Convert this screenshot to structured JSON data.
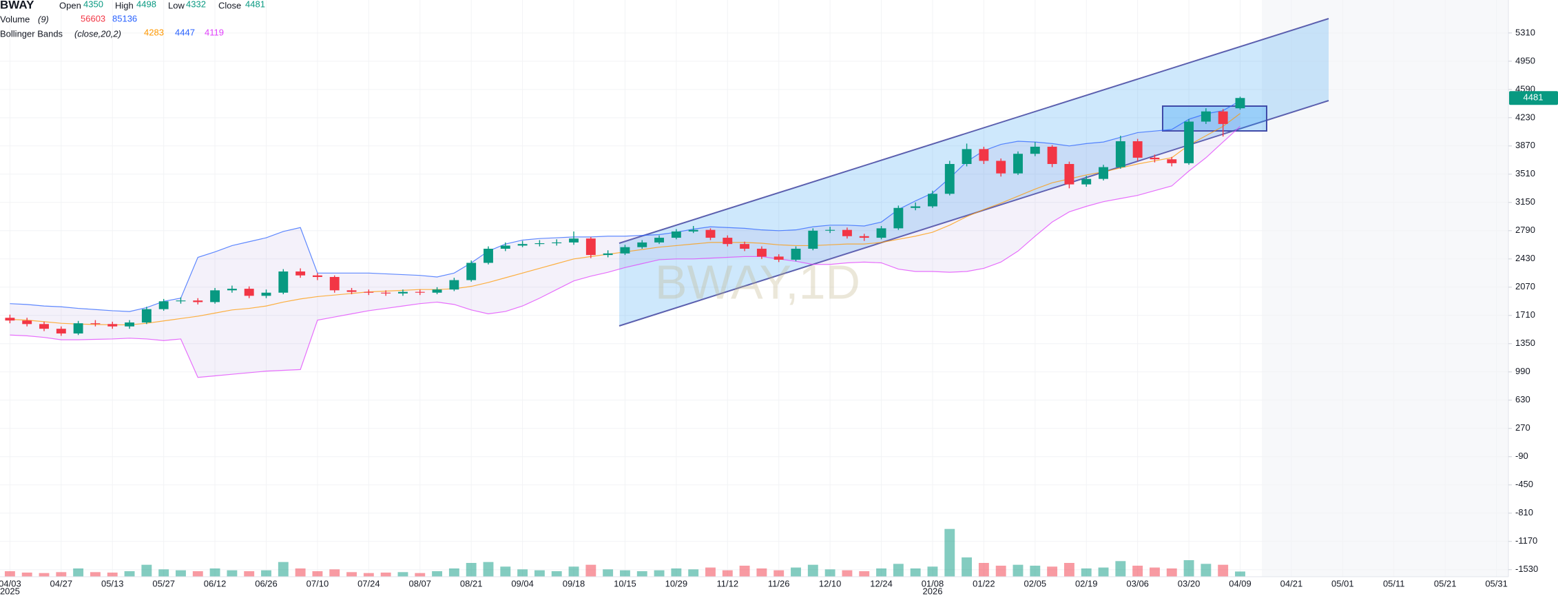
{
  "chart_data": {
    "type": "candlestick",
    "title": "BWAY",
    "watermark": "BWAY,1D",
    "open_label": "Open",
    "high_label": "High",
    "low_label": "Low",
    "close_label": "Close",
    "volume_label": "Volume",
    "volume_params": "(9)",
    "volume_ma": 85136,
    "bb_label": "Bollinger Bands",
    "bb_params": "(close,20,2)",
    "categories": [
      "04/03",
      null,
      null,
      "04/27",
      null,
      null,
      "05/13",
      null,
      null,
      "05/27",
      null,
      null,
      "06/12",
      null,
      null,
      "06/26",
      null,
      null,
      "07/10",
      null,
      null,
      "07/24",
      null,
      null,
      "08/07",
      null,
      null,
      "08/21",
      null,
      null,
      "09/04",
      null,
      null,
      "09/18",
      null,
      null,
      "10/15",
      null,
      null,
      "10/29",
      null,
      null,
      "11/12",
      null,
      null,
      "11/26",
      null,
      null,
      "12/10",
      null,
      null,
      "12/24",
      null,
      null,
      "01/08",
      null,
      null,
      "01/22",
      null,
      null,
      "02/05",
      null,
      null,
      "02/19",
      null,
      null,
      "03/06",
      null,
      null,
      "03/20",
      null,
      null,
      "04/09",
      null,
      null,
      "04/21",
      null,
      null,
      "05/01",
      null,
      null,
      "05/11",
      null,
      null,
      "05/21",
      null,
      null,
      "05/31"
    ],
    "year_labels": [
      "2025",
      "2026"
    ],
    "open": [
      1680,
      1645,
      1600,
      1540,
      1480,
      1610,
      1600,
      1570,
      1620,
      1790,
      1890,
      1900,
      1880,
      2030,
      2050,
      1960,
      2000,
      2270,
      2220,
      2200,
      2030,
      2010,
      2000,
      1990,
      2010,
      2000,
      2040,
      2160,
      2380,
      2560,
      2600,
      2620,
      2630,
      2640,
      2690,
      2480,
      2500,
      2580,
      2640,
      2700,
      2780,
      2800,
      2700,
      2620,
      2560,
      2460,
      2420,
      2560,
      2790,
      2800,
      2720,
      2700,
      2820,
      3080,
      3100,
      3260,
      3640,
      3830,
      3680,
      3520,
      3770,
      3860,
      3640,
      3380,
      3450,
      3600,
      3930,
      3720,
      3700,
      3650,
      4180,
      4310,
      4350,
      null,
      null,
      null,
      null,
      null,
      null,
      null,
      null,
      null,
      null,
      null,
      null,
      null,
      null,
      null
    ],
    "high": [
      1720,
      1680,
      1630,
      1570,
      1640,
      1650,
      1630,
      1650,
      1820,
      1920,
      1940,
      1930,
      2060,
      2090,
      2080,
      2040,
      2300,
      2310,
      2250,
      2220,
      2060,
      2040,
      2030,
      2040,
      2040,
      2070,
      2190,
      2410,
      2590,
      2640,
      2660,
      2670,
      2680,
      2780,
      2710,
      2540,
      2610,
      2670,
      2730,
      2810,
      2850,
      2820,
      2730,
      2650,
      2590,
      2490,
      2590,
      2820,
      2840,
      2830,
      2750,
      2850,
      3110,
      3150,
      3300,
      3680,
      3900,
      3860,
      3710,
      3800,
      3920,
      3880,
      3670,
      3490,
      3630,
      4000,
      3960,
      3760,
      3730,
      4210,
      4350,
      4340,
      4498,
      null,
      null,
      null,
      null,
      null,
      null,
      null,
      null,
      null,
      null,
      null,
      null,
      null,
      null,
      null
    ],
    "low": [
      1610,
      1570,
      1510,
      1450,
      1460,
      1570,
      1540,
      1540,
      1600,
      1770,
      1860,
      1850,
      1860,
      2000,
      1930,
      1930,
      1980,
      2190,
      2160,
      2000,
      1980,
      1970,
      1960,
      1960,
      1970,
      1980,
      2020,
      2140,
      2360,
      2530,
      2580,
      2590,
      2600,
      2610,
      2440,
      2450,
      2480,
      2560,
      2620,
      2680,
      2760,
      2670,
      2590,
      2530,
      2430,
      2390,
      2400,
      2540,
      2760,
      2690,
      2660,
      2680,
      2800,
      3050,
      3080,
      3240,
      3610,
      3640,
      3480,
      3500,
      3740,
      3600,
      3330,
      3350,
      3430,
      3580,
      3680,
      3660,
      3610,
      3630,
      4150,
      3990,
      4332,
      null,
      null,
      null,
      null,
      null,
      null,
      null,
      null,
      null,
      null,
      null,
      null,
      null,
      null,
      null
    ],
    "close": [
      1645,
      1600,
      1540,
      1480,
      1610,
      1600,
      1570,
      1620,
      1790,
      1890,
      1900,
      1880,
      2030,
      2050,
      1960,
      2000,
      2270,
      2220,
      2200,
      2030,
      2010,
      2000,
      1990,
      2010,
      2000,
      2040,
      2160,
      2380,
      2560,
      2600,
      2620,
      2630,
      2640,
      2690,
      2480,
      2500,
      2580,
      2640,
      2700,
      2780,
      2800,
      2700,
      2620,
      2560,
      2460,
      2420,
      2560,
      2790,
      2800,
      2720,
      2700,
      2820,
      3080,
      3100,
      3260,
      3640,
      3830,
      3680,
      3520,
      3770,
      3860,
      3640,
      3380,
      3450,
      3600,
      3930,
      3720,
      3700,
      3650,
      4180,
      4310,
      4150,
      4481,
      null,
      null,
      null,
      null,
      null,
      null,
      null,
      null,
      null,
      null,
      null,
      null,
      null,
      null,
      null
    ],
    "volume": [
      60000,
      45000,
      40000,
      50000,
      90000,
      50000,
      45000,
      60000,
      130000,
      80000,
      70000,
      60000,
      90000,
      70000,
      60000,
      70000,
      160000,
      90000,
      60000,
      80000,
      50000,
      40000,
      45000,
      50000,
      40000,
      60000,
      90000,
      150000,
      160000,
      110000,
      80000,
      70000,
      60000,
      110000,
      130000,
      80000,
      70000,
      60000,
      70000,
      90000,
      80000,
      100000,
      70000,
      120000,
      90000,
      70000,
      100000,
      130000,
      80000,
      70000,
      60000,
      90000,
      140000,
      90000,
      110000,
      520000,
      210000,
      150000,
      120000,
      130000,
      120000,
      110000,
      150000,
      90000,
      100000,
      170000,
      120000,
      100000,
      90000,
      180000,
      140000,
      130000,
      56603,
      null,
      null,
      null,
      null,
      null,
      null,
      null,
      null,
      null,
      null,
      null,
      null,
      null,
      null,
      null
    ],
    "bb_upper": [
      1860,
      1850,
      1830,
      1820,
      1800,
      1785,
      1770,
      1760,
      1810,
      1890,
      1930,
      2450,
      2520,
      2600,
      2650,
      2700,
      2780,
      2830,
      2250,
      2250,
      2250,
      2250,
      2240,
      2230,
      2220,
      2200,
      2250,
      2380,
      2530,
      2620,
      2670,
      2690,
      2700,
      2710,
      2710,
      2720,
      2720,
      2730,
      2740,
      2770,
      2810,
      2840,
      2830,
      2820,
      2800,
      2790,
      2800,
      2840,
      2860,
      2860,
      2850,
      2900,
      3060,
      3170,
      3270,
      3460,
      3670,
      3810,
      3890,
      3930,
      3920,
      3900,
      3870,
      3900,
      3920,
      3980,
      4040,
      4060,
      4080,
      4210,
      4280,
      4320,
      4447,
      null,
      null,
      null,
      null,
      null,
      null,
      null,
      null,
      null,
      null,
      null,
      null,
      null,
      null,
      null
    ],
    "bb_middle": [
      1660,
      1650,
      1630,
      1610,
      1600,
      1595,
      1590,
      1590,
      1610,
      1640,
      1670,
      1700,
      1740,
      1780,
      1800,
      1830,
      1880,
      1920,
      1950,
      1970,
      1990,
      2010,
      2020,
      2030,
      2040,
      2040,
      2050,
      2080,
      2130,
      2190,
      2250,
      2310,
      2370,
      2430,
      2460,
      2490,
      2520,
      2550,
      2580,
      2600,
      2620,
      2640,
      2640,
      2640,
      2630,
      2610,
      2600,
      2600,
      2610,
      2620,
      2620,
      2640,
      2680,
      2720,
      2770,
      2860,
      2970,
      3060,
      3140,
      3230,
      3320,
      3400,
      3450,
      3500,
      3540,
      3590,
      3640,
      3680,
      3720,
      3880,
      4000,
      4120,
      4283,
      null,
      null,
      null,
      null,
      null,
      null,
      null,
      null,
      null,
      null,
      null,
      null,
      null,
      null,
      null
    ],
    "bb_lower": [
      1460,
      1450,
      1430,
      1400,
      1400,
      1405,
      1410,
      1420,
      1410,
      1390,
      1410,
      920,
      940,
      960,
      980,
      1000,
      1010,
      1020,
      1650,
      1690,
      1730,
      1770,
      1800,
      1830,
      1860,
      1880,
      1850,
      1780,
      1730,
      1760,
      1830,
      1930,
      2040,
      2150,
      2210,
      2260,
      2320,
      2370,
      2420,
      2430,
      2430,
      2440,
      2450,
      2460,
      2460,
      2430,
      2400,
      2360,
      2360,
      2380,
      2390,
      2380,
      2300,
      2270,
      2270,
      2260,
      2270,
      2310,
      2390,
      2530,
      2720,
      2900,
      3030,
      3100,
      3160,
      3200,
      3240,
      3300,
      3360,
      3550,
      3720,
      3920,
      4119,
      null,
      null,
      null,
      null,
      null,
      null,
      null,
      null,
      null,
      null,
      null,
      null,
      null,
      null,
      null
    ],
    "up_color": "#089981",
    "down_color": "#f23645",
    "bb_colors": {
      "upper": "#2962ff",
      "middle": "#ff9800",
      "lower": "#e040fb"
    },
    "volume_colors": {
      "value": "#f23645",
      "ma": "#2962ff"
    },
    "ylim": [
      -1620,
      5730
    ],
    "yticks": [
      5310,
      4950,
      4590,
      4230,
      3870,
      3510,
      3150,
      2790,
      2430,
      2070,
      1710,
      1350,
      990,
      630,
      270,
      -90,
      -450,
      -810,
      -1170,
      -1530
    ],
    "volume_ylim": [
      0,
      600000
    ],
    "grid": true
  }
}
